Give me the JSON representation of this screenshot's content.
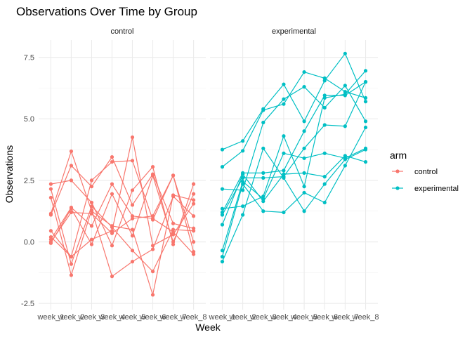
{
  "chart_data": {
    "type": "line",
    "title": "Observations Over Time by Group",
    "xlabel": "Week",
    "ylabel": "Observations",
    "ylim": [
      -2.75,
      8.2
    ],
    "y_ticks": [
      -2.5,
      0.0,
      2.5,
      5.0,
      7.5
    ],
    "y_tick_labels": [
      "-2.5",
      "0.0",
      "2.5",
      "5.0",
      "7.5"
    ],
    "categories": [
      "week_1",
      "week_2",
      "week_3",
      "week_4",
      "week_5",
      "week_6",
      "week_7",
      "week_8"
    ],
    "grid": true,
    "legend": {
      "title": "arm",
      "position": "right",
      "entries": [
        {
          "label": "control",
          "color": "#F8766D"
        },
        {
          "label": "experimental",
          "color": "#00BFC4"
        }
      ]
    },
    "panels": [
      {
        "label": "control",
        "color": "#F8766D",
        "series": [
          {
            "values": [
              0.2,
              -0.6,
              2.5,
              3.25,
              3.3,
              0.9,
              2.7,
              -0.4
            ]
          },
          {
            "values": [
              1.15,
              3.68,
              1.25,
              0.65,
              0.5,
              -2.15,
              1.9,
              1.7
            ]
          },
          {
            "values": [
              2.35,
              2.5,
              1.6,
              -0.15,
              2.1,
              3.05,
              -0.1,
              2.35
            ]
          },
          {
            "values": [
              1.1,
              3.1,
              2.25,
              3.45,
              1.5,
              2.75,
              0.75,
              0.55
            ]
          },
          {
            "values": [
              -0.05,
              1.35,
              -0.1,
              1.95,
              0.25,
              2.7,
              0.0,
              1.95
            ]
          },
          {
            "values": [
              0.0,
              1.2,
              1.15,
              0.35,
              0.95,
              1.05,
              2.7,
              0.0
            ]
          },
          {
            "values": [
              2.15,
              -0.9,
              1.45,
              0.6,
              -0.35,
              -1.2,
              0.5,
              0.45
            ]
          },
          {
            "values": [
              0.45,
              -0.6,
              0.1,
              0.45,
              4.25,
              -0.15,
              0.3,
              1.55
            ]
          },
          {
            "values": [
              0.1,
              1.4,
              0.65,
              2.35,
              1.05,
              0.95,
              0.4,
              -0.5
            ]
          },
          {
            "values": [
              1.8,
              -1.35,
              1.3,
              -1.4,
              -0.8,
              -0.3,
              1.85,
              1.05
            ]
          }
        ]
      },
      {
        "label": "experimental",
        "color": "#00BFC4",
        "series": [
          {
            "values": [
              3.05,
              3.7,
              5.35,
              5.6,
              6.9,
              6.65,
              6.1,
              5.85
            ]
          },
          {
            "values": [
              3.75,
              4.1,
              5.4,
              6.4,
              4.9,
              6.55,
              7.65,
              5.7
            ]
          },
          {
            "values": [
              2.15,
              2.1,
              4.85,
              5.8,
              6.3,
              5.45,
              6.35,
              4.9
            ]
          },
          {
            "values": [
              1.35,
              1.45,
              1.85,
              4.3,
              2.25,
              5.85,
              6.0,
              6.95
            ]
          },
          {
            "values": [
              1.2,
              2.8,
              2.8,
              2.9,
              4.5,
              5.95,
              5.95,
              6.5
            ]
          },
          {
            "values": [
              1.1,
              2.6,
              2.6,
              2.65,
              3.8,
              4.75,
              4.7,
              6.5
            ]
          },
          {
            "values": [
              0.7,
              2.75,
              1.65,
              2.75,
              2.8,
              2.65,
              3.5,
              3.25
            ]
          },
          {
            "values": [
              -0.35,
              2.45,
              1.75,
              3.6,
              3.4,
              3.6,
              3.4,
              3.8
            ]
          },
          {
            "values": [
              -0.6,
              2.35,
              1.25,
              1.2,
              2.0,
              1.6,
              3.1,
              4.65
            ]
          },
          {
            "values": [
              -0.8,
              1.1,
              3.8,
              2.6,
              1.25,
              2.35,
              3.35,
              3.75
            ]
          }
        ]
      }
    ]
  }
}
